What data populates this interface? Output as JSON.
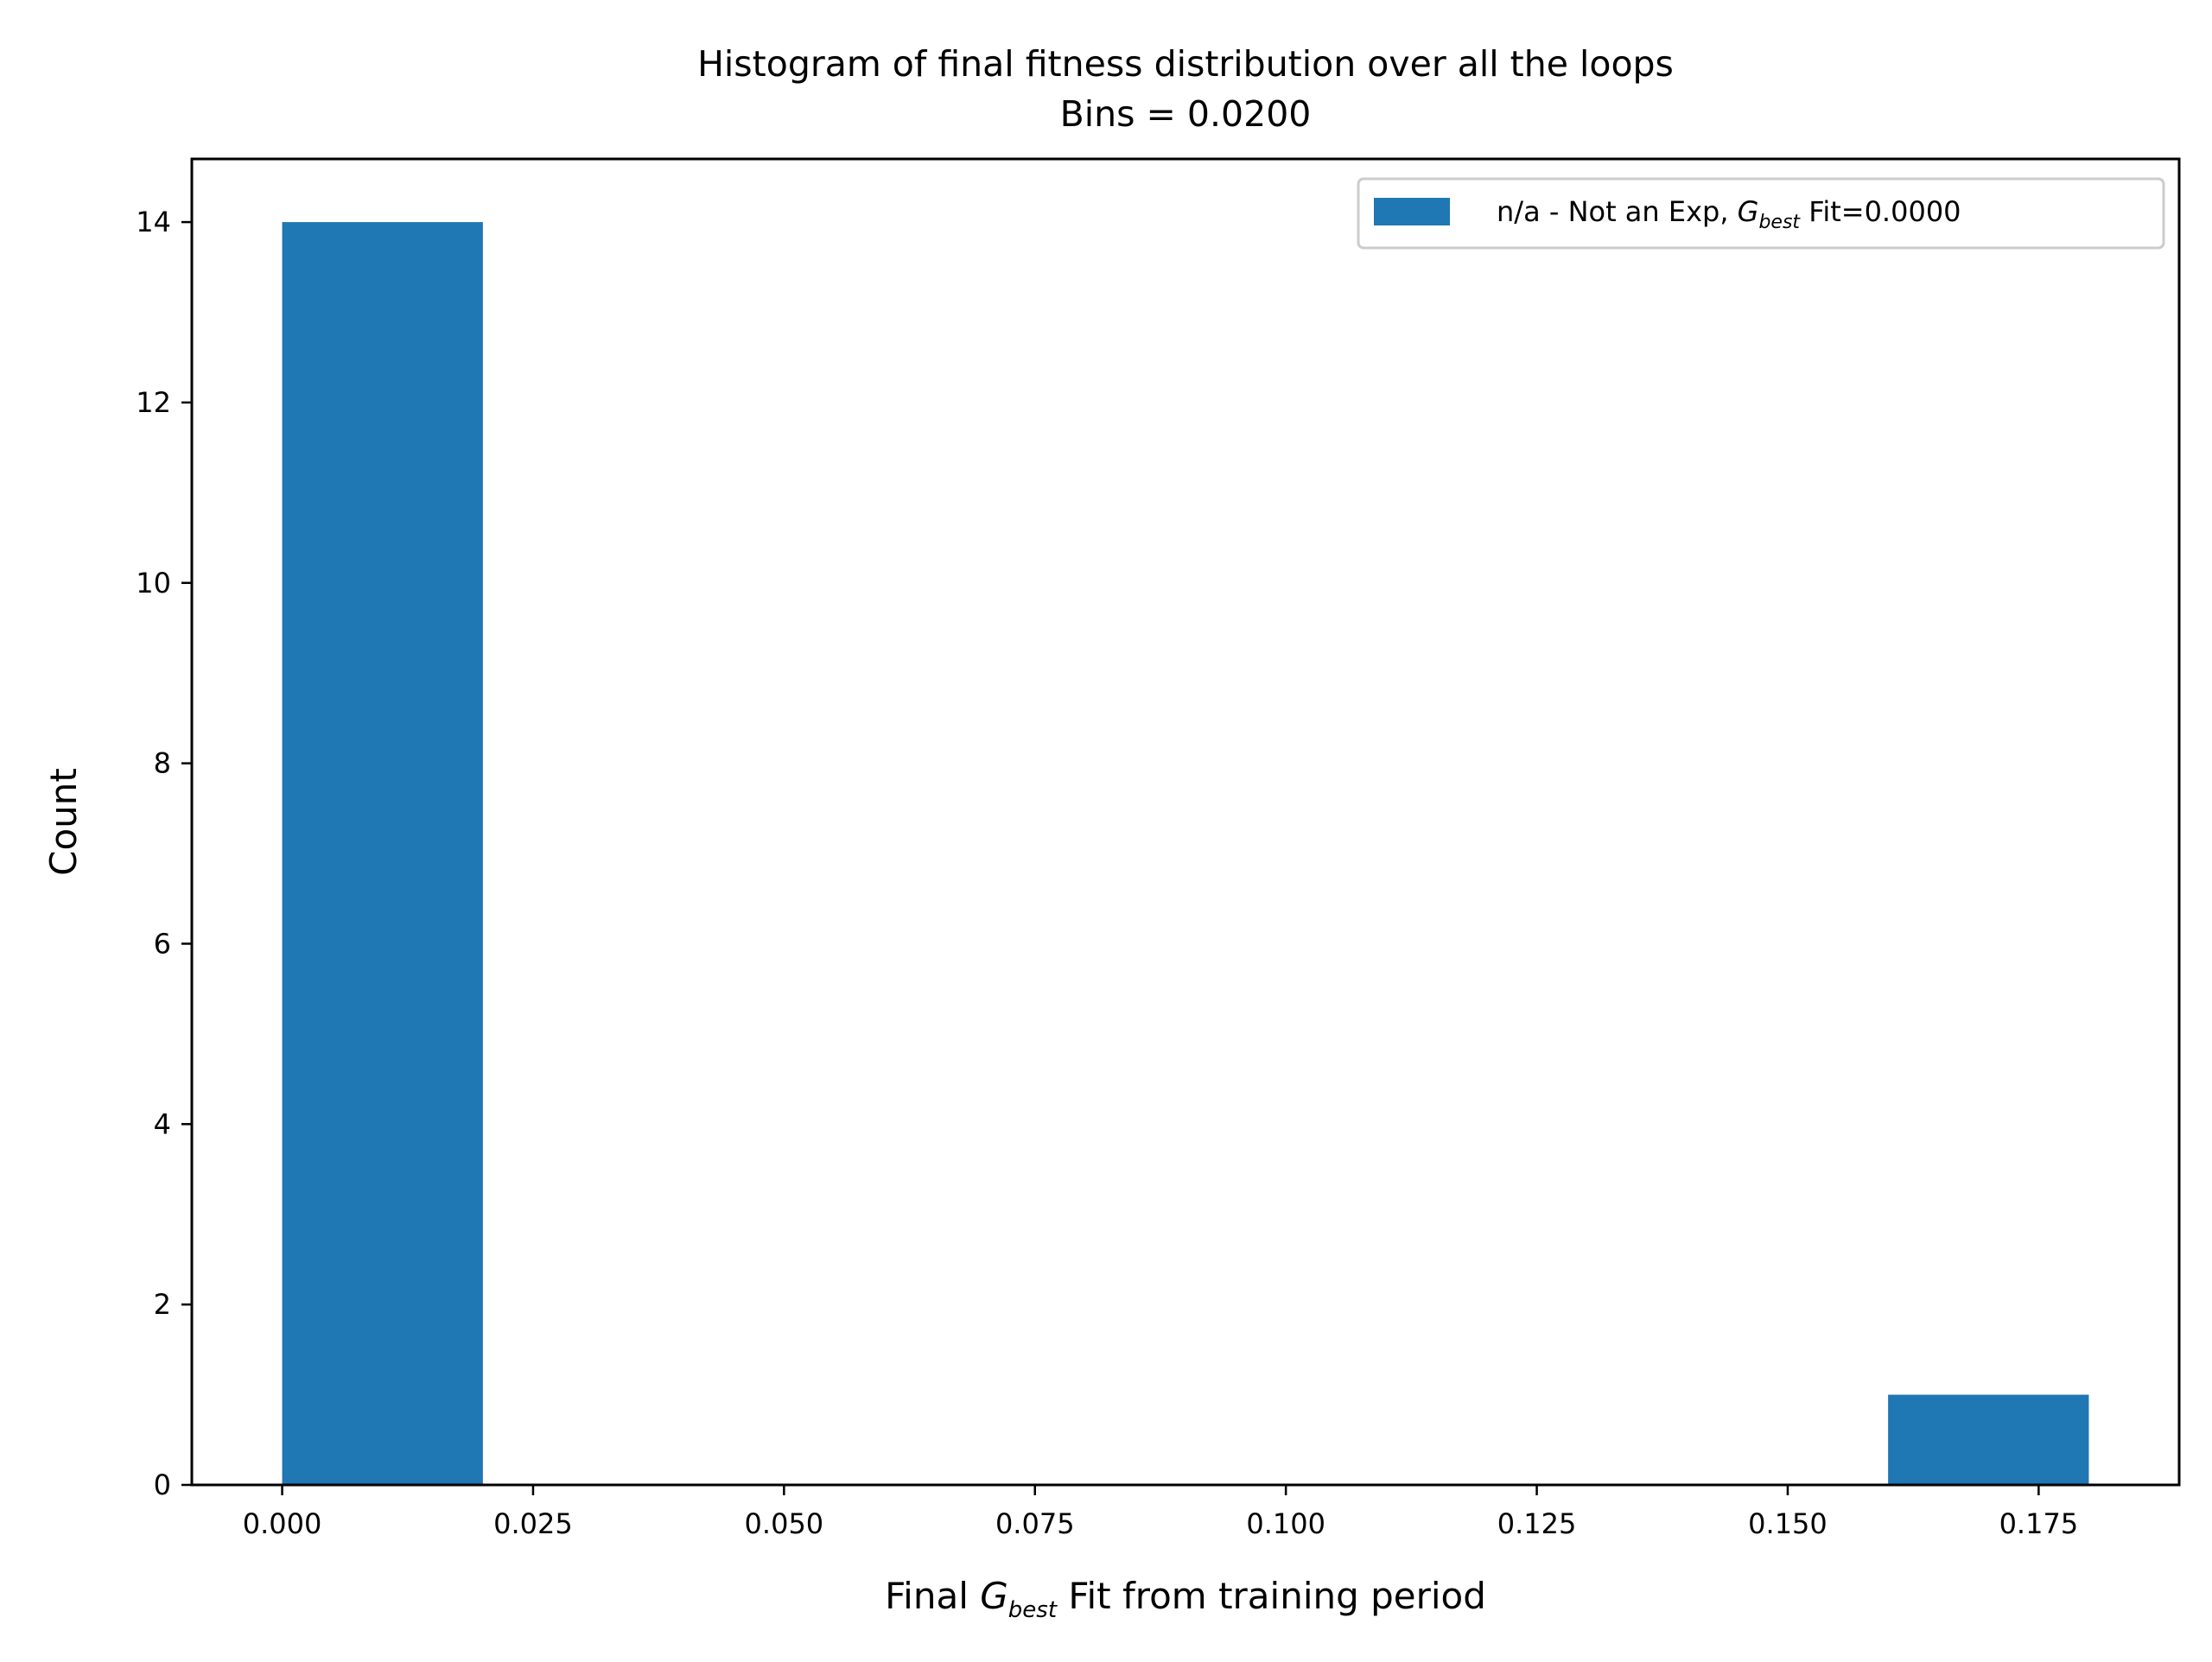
{
  "chart_data": {
    "type": "bar",
    "title": "Histogram of final fitness distribution over all the loops",
    "subtitle": "Bins = 0.0200",
    "xlabel": {
      "prefix": "Final ",
      "symbol": "G",
      "subscript": "best",
      "suffix": " Fit from training period"
    },
    "ylabel": "Count",
    "xlim": [
      -0.009,
      0.189
    ],
    "ylim": [
      0,
      14.7
    ],
    "xticks": [
      0.0,
      0.025,
      0.05,
      0.075,
      0.1,
      0.125,
      0.15,
      0.175
    ],
    "xtick_labels": [
      "0.000",
      "0.025",
      "0.050",
      "0.075",
      "0.100",
      "0.125",
      "0.150",
      "0.175"
    ],
    "yticks": [
      0,
      2,
      4,
      6,
      8,
      10,
      12,
      14
    ],
    "ytick_labels": [
      "0",
      "2",
      "4",
      "6",
      "8",
      "10",
      "12",
      "14"
    ],
    "bins": [
      {
        "x0": 0.0,
        "x1": 0.02,
        "count": 14
      },
      {
        "x0": 0.16,
        "x1": 0.18,
        "count": 1
      }
    ],
    "bar_color": "#1f77b4",
    "legend": {
      "placement": "top-right",
      "entry": {
        "prefix": "n/a - Not an Exp, ",
        "symbol": "G",
        "subscript": "best",
        "suffix": " Fit=0.0000"
      }
    },
    "grid": false
  }
}
